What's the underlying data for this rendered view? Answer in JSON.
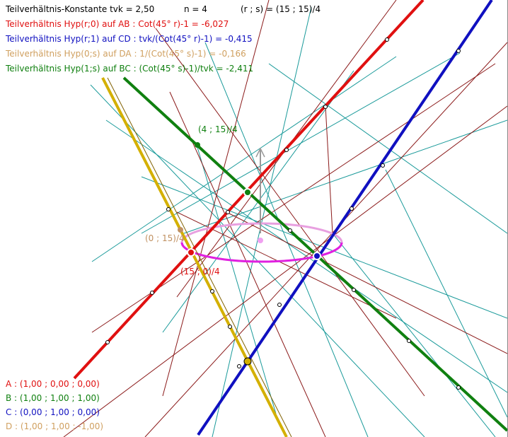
{
  "header": {
    "tvk": "Teilverhältnis-Konstante tvk = 2,50",
    "n": "n = 4",
    "rs": "(r ; s) = (15 ; 15)/4"
  },
  "formulas": [
    "Teilverhältnis Hyp(r;0) auf AB : Cot(45° r)-1 = -6,027",
    "Teilverhältnis Hyp(r;1) auf CD : tvk/(Cot(45° r)-1) = -0,415",
    "Teilverhältnis Hyp(0;s) auf DA : 1/(Cot(45° s)-1) = -0,166",
    "Teilverhältnis Hyp(1;s) auf BC : (Cot(45° s)-1)/tvk = -2,411"
  ],
  "point_labels": [
    "(4 ; 15)/4",
    "(0 ; 15)/4",
    "(15 ; 0)/4"
  ],
  "coordinates": [
    "A : (1,00 ; 0,00 ; 0,00)",
    "B : (1,00 ; 1,00 ; 1,00)",
    "C : (0,00 ; 1,00 ; 0,00)",
    "D : (1,00 ; 1,00 ; -1,00)"
  ]
}
